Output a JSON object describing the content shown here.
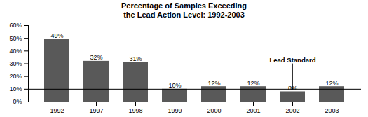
{
  "chart_data": {
    "type": "bar",
    "title": "Percentage of Samples Exceeding\nthe Lead Action Level: 1992-2003",
    "categories": [
      "1992",
      "1997",
      "1998",
      "1999",
      "2000",
      "2001",
      "2002",
      "2003"
    ],
    "values": [
      49,
      32,
      31,
      10,
      12,
      12,
      8,
      12
    ],
    "value_labels": [
      "49%",
      "32%",
      "31%",
      "10%",
      "12%",
      "12%",
      "8%",
      "12%"
    ],
    "data_labels": true,
    "color": "#595959",
    "ylim": [
      0,
      60
    ],
    "yticks": [
      {
        "value": 0,
        "label": "0%"
      },
      {
        "value": 10,
        "label": "10%"
      },
      {
        "value": 20,
        "label": "20%"
      },
      {
        "value": 30,
        "label": "30%"
      },
      {
        "value": 40,
        "label": "40%"
      },
      {
        "value": 50,
        "label": "50%"
      },
      {
        "value": 60,
        "label": "60%"
      }
    ],
    "grid": false,
    "hline": {
      "y": 10,
      "label": "Lead Standard",
      "x": "2002"
    }
  }
}
